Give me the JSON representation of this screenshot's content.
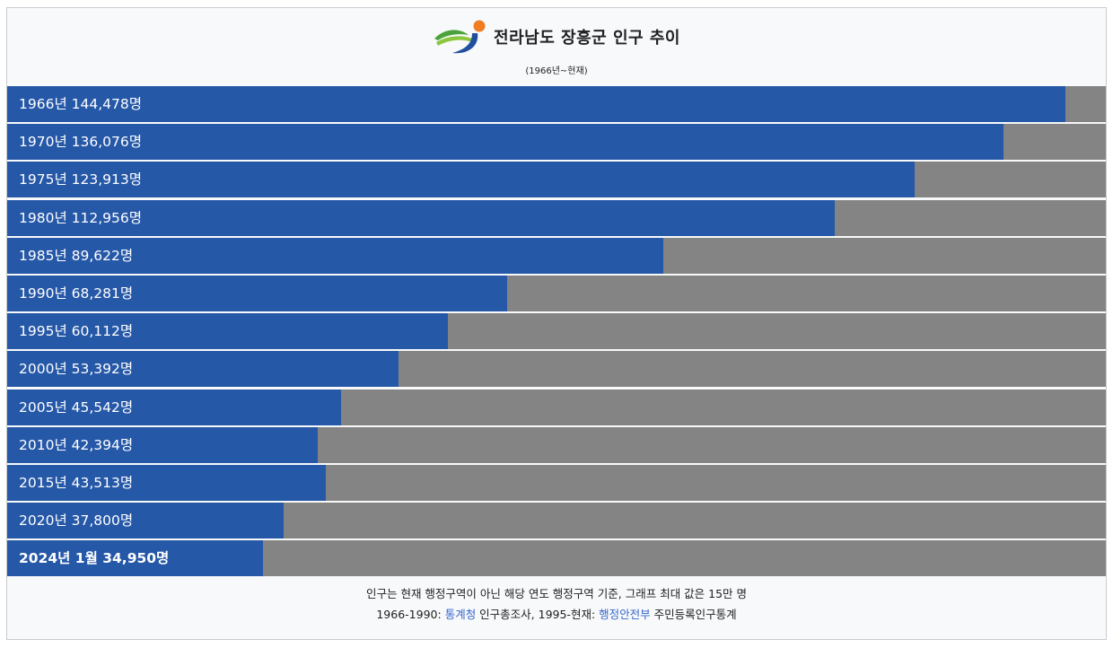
{
  "chart_data": {
    "type": "bar",
    "orientation": "horizontal",
    "title": "전라남도 장흥군 인구 추이",
    "subtitle": "(1966년~현재)",
    "xlim": [
      0,
      150000
    ],
    "grid": false,
    "categories": [
      "1966년",
      "1970년",
      "1975년",
      "1980년",
      "1985년",
      "1990년",
      "1995년",
      "2000년",
      "2005년",
      "2010년",
      "2015년",
      "2020년",
      "2024년 1월"
    ],
    "values": [
      144478,
      136076,
      123913,
      112956,
      89622,
      68281,
      60112,
      53392,
      45542,
      42394,
      43513,
      37800,
      34950
    ],
    "labels": [
      "1966년 144,478명",
      "1970년 136,076명",
      "1975년 123,913명",
      "1980년 112,956명",
      "1985년 89,622명",
      "1990년 68,281명",
      "1995년 60,112명",
      "2000년 53,392명",
      "2005년 45,542명",
      "2010년 42,394명",
      "2015년 43,513명",
      "2020년 37,800명",
      "2024년 1월 34,950명"
    ],
    "colors": {
      "bar": "#2658a8",
      "track": "#848484",
      "link": "#3366cc",
      "logo_green": "#4aa33a",
      "logo_blue": "#1f4f9e",
      "logo_orange": "#ef7d22"
    }
  },
  "footer": {
    "note": "인구는 현재 행정구역이 아닌 해당 연도 행정구역 기준, 그래프 최대 값은 15만 명",
    "source_prefix": "1966-1990: ",
    "source_link1": "통계청",
    "source_mid": " 인구총조사, 1995-현재: ",
    "source_link2": "행정안전부",
    "source_suffix": " 주민등록인구통계"
  }
}
